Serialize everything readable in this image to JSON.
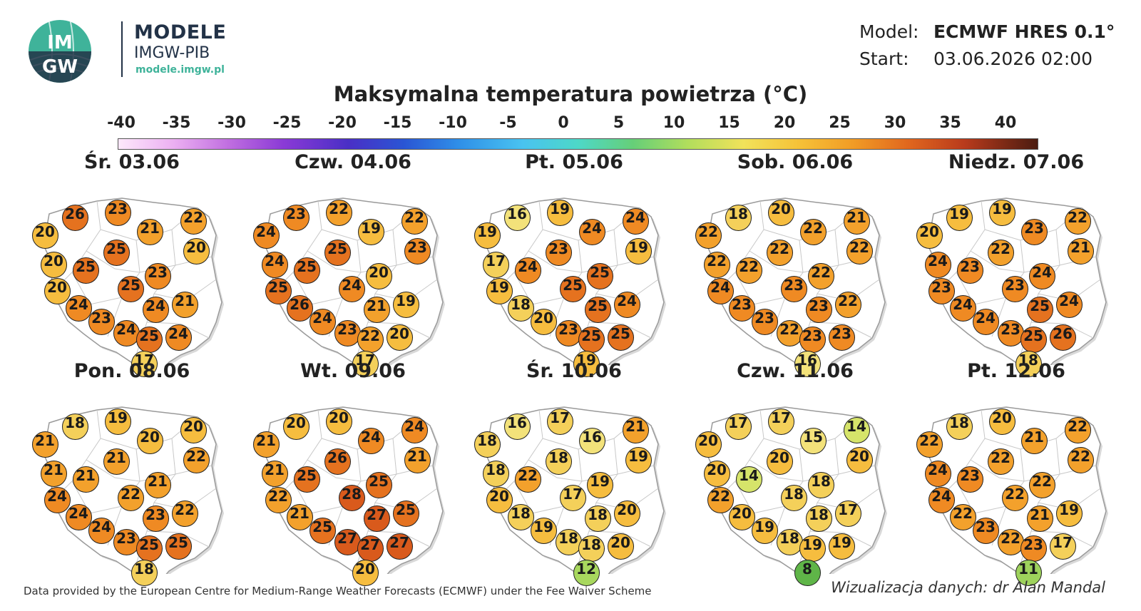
{
  "brand": {
    "logo_text_top": "IM",
    "logo_text_bottom": "GW",
    "title": "MODELE",
    "subtitle": "IMGW-PIB",
    "url": "modele.imgw.pl"
  },
  "meta": {
    "model_label": "Model:",
    "model_value": "ECMWF HRES 0.1°",
    "start_label": "Start:",
    "start_value": "03.06.2026 02:00"
  },
  "title": "Maksymalna temperatura powietrza (°C)",
  "colorbar": {
    "ticks": [
      "-40",
      "-35",
      "-30",
      "-25",
      "-20",
      "-15",
      "-10",
      "-5",
      "0",
      "5",
      "10",
      "15",
      "20",
      "25",
      "30",
      "35",
      "40"
    ],
    "min": -40,
    "max": 40
  },
  "days": [
    {
      "label": "Śr. 03.06",
      "values": [
        20,
        26,
        23,
        21,
        22,
        20,
        25,
        25,
        20,
        23,
        20,
        25,
        24,
        21,
        24,
        23,
        24,
        25,
        24,
        17
      ]
    },
    {
      "label": "Czw. 04.06",
      "values": [
        24,
        23,
        22,
        19,
        22,
        23,
        25,
        25,
        24,
        20,
        25,
        24,
        21,
        19,
        26,
        24,
        23,
        22,
        20,
        17
      ]
    },
    {
      "label": "Pt. 05.06",
      "values": [
        19,
        16,
        19,
        24,
        24,
        19,
        23,
        24,
        17,
        25,
        19,
        25,
        25,
        24,
        18,
        20,
        23,
        25,
        25,
        19
      ]
    },
    {
      "label": "Sob. 06.06",
      "values": [
        22,
        18,
        20,
        22,
        21,
        22,
        22,
        22,
        22,
        22,
        24,
        23,
        23,
        22,
        23,
        23,
        22,
        23,
        23,
        16
      ]
    },
    {
      "label": "Niedz. 07.06",
      "values": [
        20,
        19,
        19,
        23,
        22,
        21,
        22,
        23,
        24,
        24,
        23,
        23,
        25,
        24,
        24,
        24,
        23,
        25,
        26,
        18
      ]
    },
    {
      "label": "Pon. 08.06",
      "values": [
        21,
        18,
        19,
        20,
        20,
        22,
        21,
        21,
        21,
        21,
        24,
        22,
        23,
        22,
        24,
        24,
        23,
        25,
        25,
        18
      ]
    },
    {
      "label": "Wt. 09.06",
      "values": [
        21,
        20,
        20,
        24,
        24,
        21,
        26,
        25,
        21,
        25,
        22,
        28,
        27,
        25,
        21,
        25,
        27,
        27,
        27,
        20
      ]
    },
    {
      "label": "Śr. 10.06",
      "values": [
        18,
        16,
        17,
        16,
        21,
        19,
        18,
        22,
        18,
        19,
        20,
        17,
        18,
        20,
        18,
        19,
        18,
        18,
        20,
        12
      ]
    },
    {
      "label": "Czw. 11.06",
      "values": [
        20,
        17,
        17,
        15,
        14,
        20,
        20,
        14,
        20,
        18,
        22,
        18,
        18,
        17,
        20,
        19,
        18,
        19,
        19,
        8
      ]
    },
    {
      "label": "Pt. 12.06",
      "values": [
        22,
        18,
        20,
        21,
        22,
        22,
        22,
        23,
        24,
        22,
        24,
        22,
        21,
        19,
        22,
        23,
        22,
        23,
        17,
        11
      ]
    }
  ],
  "footer_left": "Data provided by the European Centre for Medium-Range Weather Forecasts (ECMWF) under the Fee Waiver Scheme",
  "footer_right": "Wizualizacja danych: dr Alan Mandal"
}
